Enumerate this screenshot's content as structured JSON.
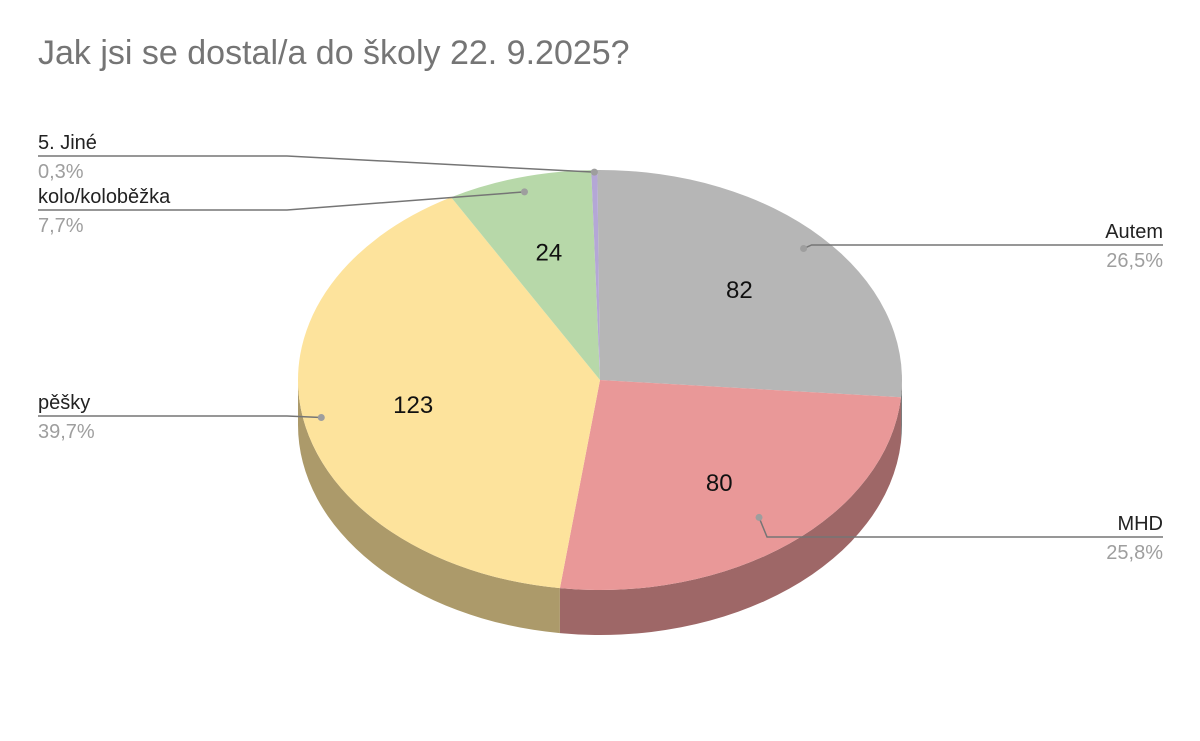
{
  "chart_data": {
    "type": "pie",
    "title": "Jak jsi se dostal/a do školy 22. 9.2025?",
    "three_d": true,
    "slices": [
      {
        "label": "Autem",
        "value": 82,
        "percent_label": "26,5%",
        "color": "#b6b6b6"
      },
      {
        "label": "MHD",
        "value": 80,
        "percent_label": "25,8%",
        "color": "#e99898"
      },
      {
        "label": "pěšky",
        "value": 123,
        "percent_label": "39,7%",
        "color": "#fde39c"
      },
      {
        "label": "kolo/koloběžka",
        "value": 24,
        "percent_label": "7,7%",
        "color": "#b7d8a9"
      },
      {
        "label": "5. Jiné",
        "value": 1,
        "percent_label": "0,3%",
        "color": "#b4a7d6"
      }
    ],
    "value_labels": [
      "82",
      "80",
      "123",
      "24",
      ""
    ],
    "legend": "callouts"
  }
}
